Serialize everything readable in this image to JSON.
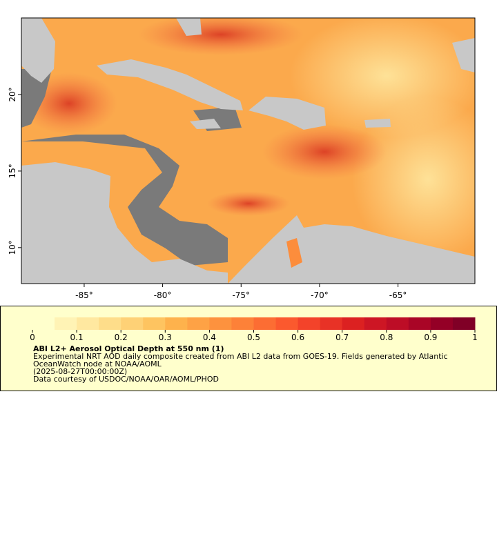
{
  "map": {
    "xlim": [
      -89,
      -60.1
    ],
    "ylim": [
      7.65,
      25
    ],
    "xticks": [
      {
        "value": -85,
        "label": "-85°"
      },
      {
        "value": -80,
        "label": "-80°"
      },
      {
        "value": -75,
        "label": "-75°"
      },
      {
        "value": -70,
        "label": "-70°"
      },
      {
        "value": -65,
        "label": "-65°"
      }
    ],
    "yticks": [
      {
        "value": 10,
        "label": "10°"
      },
      {
        "value": 15,
        "label": "15°"
      },
      {
        "value": 20,
        "label": "20°"
      }
    ]
  },
  "colorbar": {
    "lim": [
      0,
      1
    ],
    "ticks": [
      0,
      0.1,
      0.2,
      0.3,
      0.4,
      0.5,
      0.6,
      0.7,
      0.8,
      0.9,
      1
    ],
    "colors": [
      "#ffffcc",
      "#fff3b5",
      "#ffe8a0",
      "#fedd8a",
      "#fed176",
      "#fec460",
      "#feb24c",
      "#fea245",
      "#fd923e",
      "#fd8138",
      "#fc6d33",
      "#fb592e",
      "#f3432a",
      "#e83226",
      "#dc2121",
      "#cd1624",
      "#bd0d26",
      "#a90526",
      "#940026",
      "#800026"
    ]
  },
  "legend": {
    "title": "ABI L2+ Aerosol Optical Depth at 550 nm (1)",
    "description": "Experimental NRT AOD daily composite created from ABI L2 data from GOES-19. Fields generated by Atlantic OceanWatch node at NOAA/AOML",
    "time": "(2025-08-27T00:00:00Z)",
    "credit": "Data courtesy of USDOC/NOAA/OAR/AOML/PHOD"
  }
}
